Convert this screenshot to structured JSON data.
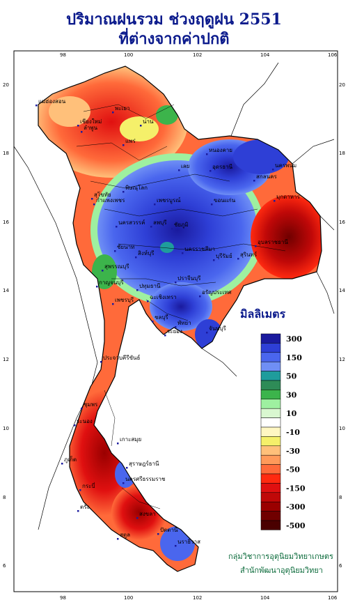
{
  "title": {
    "line1": "ปริมาณฝนรวม ช่วงฤดูฝน 2551",
    "line2": "ที่ต่างจากค่าปกติ"
  },
  "axes": {
    "top_ticks": [
      "98",
      "100",
      "102",
      "104",
      "106"
    ],
    "bottom_ticks": [
      "98",
      "100",
      "102",
      "104",
      "106"
    ],
    "left_ticks": [
      "20",
      "18",
      "16",
      "14",
      "12",
      "10",
      "8",
      "6"
    ],
    "right_ticks": [
      "20",
      "18",
      "16",
      "14",
      "12",
      "10",
      "8",
      "6"
    ]
  },
  "legend": {
    "unit": "มิลลิเมตร",
    "classes": [
      {
        "label": "300",
        "color": "#1a1a9e"
      },
      {
        "label": "",
        "color": "#2e3fd6"
      },
      {
        "label": "150",
        "color": "#4a66ee"
      },
      {
        "label": "",
        "color": "#6f8ff5"
      },
      {
        "label": "50",
        "color": "#1f9c9c"
      },
      {
        "label": "",
        "color": "#2e8b57"
      },
      {
        "label": "30",
        "color": "#3cb44b"
      },
      {
        "label": "",
        "color": "#9ef0a0"
      },
      {
        "label": "10",
        "color": "#d9f7d0"
      },
      {
        "label": "",
        "color": "#ffffff"
      },
      {
        "label": "-10",
        "color": "#fff7c2"
      },
      {
        "label": "",
        "color": "#f5f06a"
      },
      {
        "label": "-30",
        "color": "#ffc07a"
      },
      {
        "label": "",
        "color": "#ff9a5a"
      },
      {
        "label": "-50",
        "color": "#ff6a3a"
      },
      {
        "label": "",
        "color": "#ff2a10"
      },
      {
        "label": "-150",
        "color": "#e01010"
      },
      {
        "label": "",
        "color": "#c00808"
      },
      {
        "label": "-300",
        "color": "#9a0000"
      },
      {
        "label": "",
        "color": "#700000"
      },
      {
        "label": "-500",
        "color": "#4a0000"
      }
    ]
  },
  "places": [
    "แม่ฮ่องสอน",
    "เชียงใหม่",
    "ลำพูน",
    "พะเยา",
    "น่าน",
    "แพร่",
    "หนองคาย",
    "อุดรธานี",
    "นครพนม",
    "สกลนคร",
    "มุกดาหาร",
    "อุบลราชธานี",
    "ขอนแก่น",
    "เลย",
    "พิษณุโลก",
    "สุโขทัย",
    "กำแพงเพชร",
    "เพชรบูรณ์",
    "นครสวรรค์",
    "ลพบุรี",
    "นครราชสีมา",
    "ชัยภูมิ",
    "บุรีรัมย์",
    "สุรินทร์",
    "ชัยนาท",
    "สิงห์บุรี",
    "สุพรรณบุรี",
    "ปทุมธานี",
    "กาญจนบุรี",
    "ปราจีนบุรี",
    "อรัญประเทศ",
    "ฉะเชิงเทรา",
    "ชลบุรี",
    "พัทยา",
    "ระยอง",
    "จันทบุรี",
    "เพชรบุรี",
    "ประจวบคีรีขันธ์",
    "ชุมพร",
    "ระนอง",
    "เกาะสมุย",
    "สุราษฎร์ธานี",
    "ภูเก็ต",
    "นครศรีธรรมราช",
    "กระบี่",
    "ตรัง",
    "สงขลา",
    "ปัตตานี",
    "นราธิวาส",
    "สตูล"
  ],
  "credit": {
    "line1": "กลุ่มวิชาการอุตุนิยมวิทยาเกษตร",
    "line2": "สำนักพัฒนาอุตุนิยมวิทยา"
  }
}
